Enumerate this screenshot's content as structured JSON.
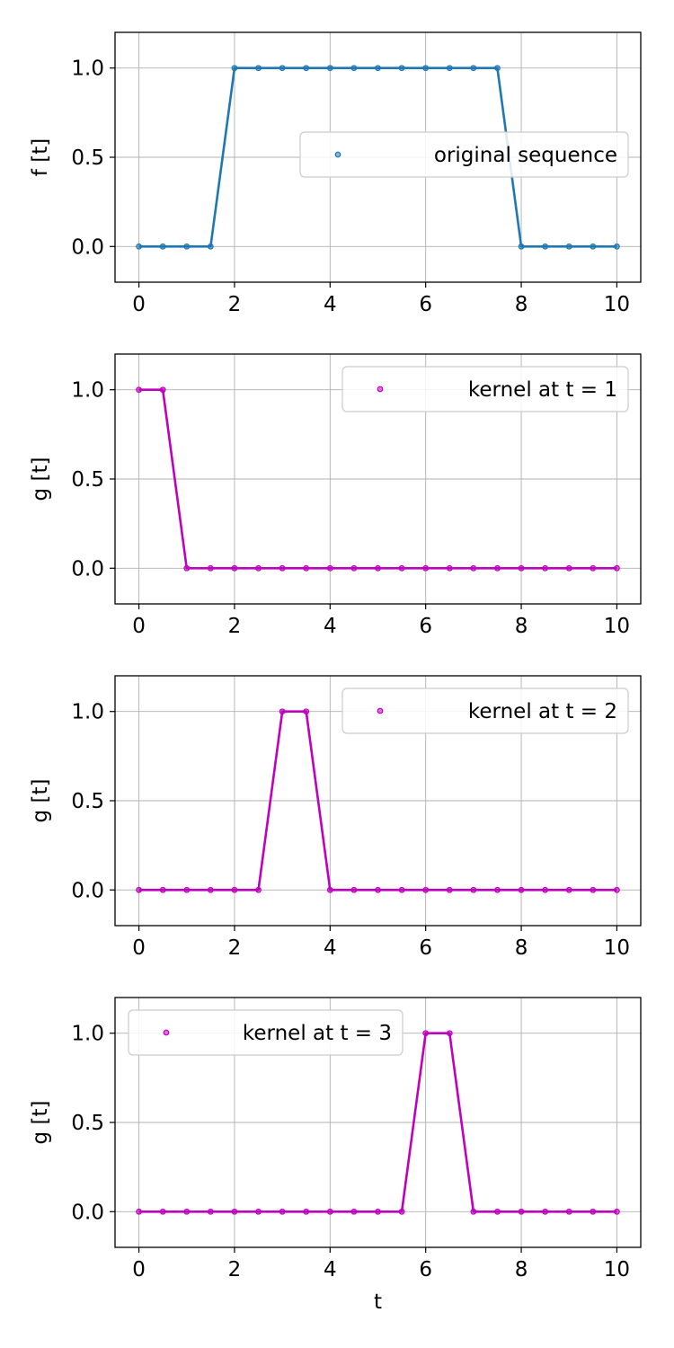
{
  "chart_data": [
    {
      "type": "line",
      "ylabel": "f [t]",
      "xlabel": "",
      "xlim": [
        -0.5,
        10.5
      ],
      "ylim": [
        -0.2,
        1.2
      ],
      "xticks": [
        0,
        2,
        4,
        6,
        8,
        10
      ],
      "xtick_labels": [
        "0",
        "2",
        "4",
        "6",
        "8",
        "10"
      ],
      "yticks": [
        0.0,
        0.5,
        1.0
      ],
      "ytick_labels": [
        "0.0",
        "0.5",
        "1.0"
      ],
      "grid": true,
      "legend_position": "center-right",
      "series": [
        {
          "name": "original sequence",
          "color": "#1f77b4",
          "x": [
            0,
            0.5,
            1,
            1.5,
            2,
            2.5,
            3,
            3.5,
            4,
            4.5,
            5,
            5.5,
            6,
            6.5,
            7,
            7.5,
            8,
            8.5,
            9,
            9.5,
            10
          ],
          "y": [
            0,
            0,
            0,
            0,
            1,
            1,
            1,
            1,
            1,
            1,
            1,
            1,
            1,
            1,
            1,
            1,
            0,
            0,
            0,
            0,
            0
          ]
        }
      ]
    },
    {
      "type": "line",
      "ylabel": "g [t]",
      "xlabel": "",
      "xlim": [
        -0.5,
        10.5
      ],
      "ylim": [
        -0.2,
        1.2
      ],
      "xticks": [
        0,
        2,
        4,
        6,
        8,
        10
      ],
      "xtick_labels": [
        "0",
        "2",
        "4",
        "6",
        "8",
        "10"
      ],
      "yticks": [
        0.0,
        0.5,
        1.0
      ],
      "ytick_labels": [
        "0.0",
        "0.5",
        "1.0"
      ],
      "grid": true,
      "legend_position": "upper-right",
      "series": [
        {
          "name": "kernel at t = 1",
          "color": "#bf00bf",
          "x": [
            0,
            0.5,
            1,
            1.5,
            2,
            2.5,
            3,
            3.5,
            4,
            4.5,
            5,
            5.5,
            6,
            6.5,
            7,
            7.5,
            8,
            8.5,
            9,
            9.5,
            10
          ],
          "y": [
            1,
            1,
            0,
            0,
            0,
            0,
            0,
            0,
            0,
            0,
            0,
            0,
            0,
            0,
            0,
            0,
            0,
            0,
            0,
            0,
            0
          ]
        }
      ]
    },
    {
      "type": "line",
      "ylabel": "g [t]",
      "xlabel": "",
      "xlim": [
        -0.5,
        10.5
      ],
      "ylim": [
        -0.2,
        1.2
      ],
      "xticks": [
        0,
        2,
        4,
        6,
        8,
        10
      ],
      "xtick_labels": [
        "0",
        "2",
        "4",
        "6",
        "8",
        "10"
      ],
      "yticks": [
        0.0,
        0.5,
        1.0
      ],
      "ytick_labels": [
        "0.0",
        "0.5",
        "1.0"
      ],
      "grid": true,
      "legend_position": "upper-right",
      "series": [
        {
          "name": "kernel at t = 2",
          "color": "#bf00bf",
          "x": [
            0,
            0.5,
            1,
            1.5,
            2,
            2.5,
            3,
            3.5,
            4,
            4.5,
            5,
            5.5,
            6,
            6.5,
            7,
            7.5,
            8,
            8.5,
            9,
            9.5,
            10
          ],
          "y": [
            0,
            0,
            0,
            0,
            0,
            0,
            1,
            1,
            0,
            0,
            0,
            0,
            0,
            0,
            0,
            0,
            0,
            0,
            0,
            0,
            0
          ]
        }
      ]
    },
    {
      "type": "line",
      "ylabel": "g [t]",
      "xlabel": "t",
      "xlim": [
        -0.5,
        10.5
      ],
      "ylim": [
        -0.2,
        1.2
      ],
      "xticks": [
        0,
        2,
        4,
        6,
        8,
        10
      ],
      "xtick_labels": [
        "0",
        "2",
        "4",
        "6",
        "8",
        "10"
      ],
      "yticks": [
        0.0,
        0.5,
        1.0
      ],
      "ytick_labels": [
        "0.0",
        "0.5",
        "1.0"
      ],
      "grid": true,
      "legend_position": "upper-left",
      "series": [
        {
          "name": "kernel at t = 3",
          "color": "#bf00bf",
          "x": [
            0,
            0.5,
            1,
            1.5,
            2,
            2.5,
            3,
            3.5,
            4,
            4.5,
            5,
            5.5,
            6,
            6.5,
            7,
            7.5,
            8,
            8.5,
            9,
            9.5,
            10
          ],
          "y": [
            0,
            0,
            0,
            0,
            0,
            0,
            0,
            0,
            0,
            0,
            0,
            0,
            1,
            1,
            0,
            0,
            0,
            0,
            0,
            0,
            0
          ]
        }
      ]
    }
  ]
}
